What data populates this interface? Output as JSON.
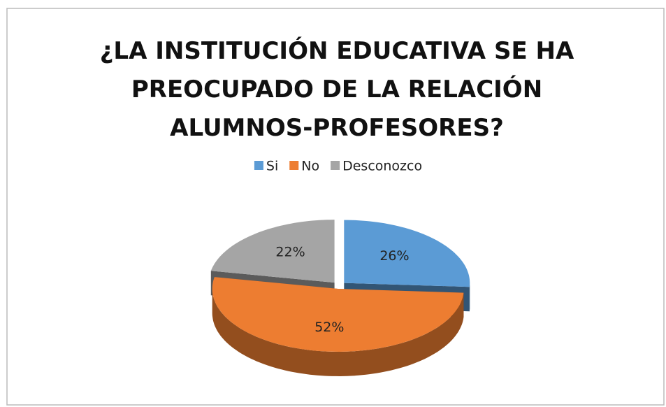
{
  "chart_data": {
    "type": "pie3d",
    "title": "¿LA INSTITUCIÓN EDUCATIVA SE HA PREOCUPADO DE LA RELACIÓN ALUMNOS-PROFESORES?",
    "categories": [
      "Si",
      "No",
      "Desconozco"
    ],
    "values": [
      26,
      52,
      22
    ],
    "value_labels": [
      "26%",
      "52%",
      "22%"
    ],
    "colors": [
      "#5b9bd5",
      "#ed7d31",
      "#a5a5a5"
    ],
    "legend": "top"
  }
}
